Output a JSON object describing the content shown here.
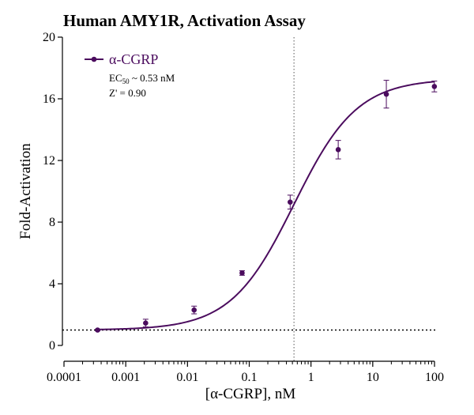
{
  "chart_data": {
    "type": "scatter",
    "title": "Human AMY1R, Activation Assay",
    "xlabel": "[α-CGRP], nM",
    "ylabel": "Fold-Activation",
    "x_scale": "log",
    "xlim": [
      0.0001,
      100
    ],
    "ylim": [
      0,
      20
    ],
    "x_ticks": [
      "0.0001",
      "0.001",
      "0.01",
      "0.1",
      "1",
      "10",
      "100"
    ],
    "y_ticks": [
      "0",
      "4",
      "8",
      "12",
      "16",
      "20"
    ],
    "series": [
      {
        "name": "α-CGRP",
        "color": "#4b0c5e",
        "x": [
          0.00035,
          0.0021,
          0.0128,
          0.0766,
          0.46,
          2.76,
          16.6,
          99.5
        ],
        "y": [
          1.0,
          1.45,
          2.3,
          4.7,
          9.3,
          12.7,
          16.3,
          16.8
        ],
        "error": [
          0.05,
          0.25,
          0.25,
          0.15,
          0.45,
          0.6,
          0.9,
          0.35
        ],
        "fit": {
          "model": "sigmoidal dose-response",
          "bottom": 1.0,
          "top": 17.3,
          "ec50": 0.53,
          "hill": 0.85
        }
      }
    ],
    "reference_lines": [
      {
        "orientation": "vertical",
        "value": 0.53,
        "style": "dotted"
      },
      {
        "orientation": "horizontal",
        "value": 1.0,
        "style": "dotted"
      }
    ],
    "annotations": {
      "ec50_prefix": "EC",
      "ec50_sub": "50",
      "ec50_suffix": " ~ 0.53 nM",
      "zprime": "Z' = 0.90"
    },
    "legend_position": "top-left",
    "grid": false
  }
}
